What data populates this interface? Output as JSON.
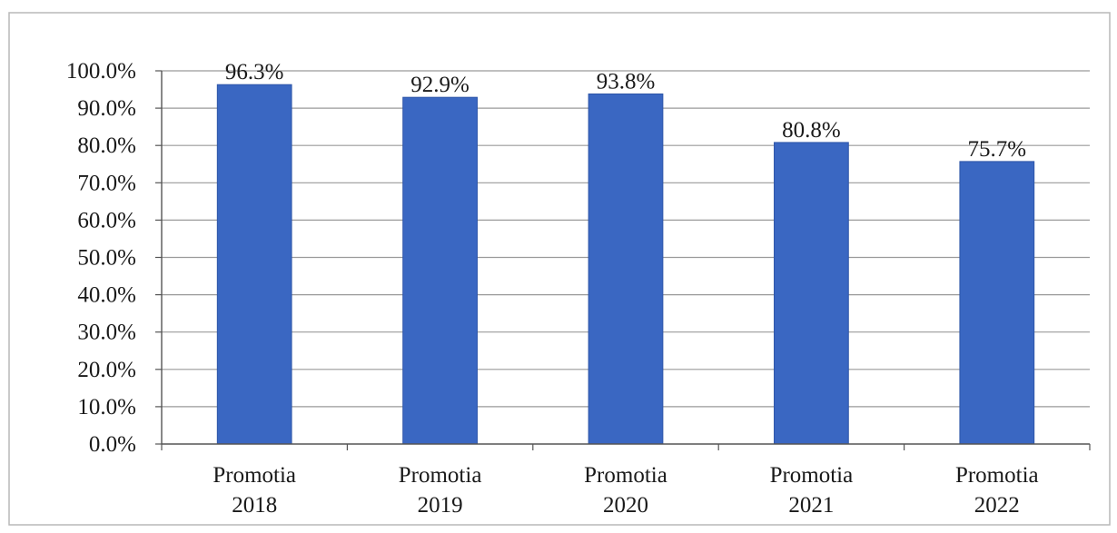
{
  "chart_data": {
    "type": "bar",
    "title": "",
    "xlabel": "",
    "ylabel": "",
    "categories": [
      [
        "Promotia",
        "2018"
      ],
      [
        "Promotia",
        "2019"
      ],
      [
        "Promotia",
        "2020"
      ],
      [
        "Promotia",
        "2021"
      ],
      [
        "Promotia",
        "2022"
      ]
    ],
    "values": [
      96.3,
      92.9,
      93.8,
      80.8,
      75.7
    ],
    "data_labels": [
      "96.3%",
      "92.9%",
      "93.8%",
      "80.8%",
      "75.7%"
    ],
    "ylim": [
      0,
      100
    ],
    "y_ticks": [
      0,
      10,
      20,
      30,
      40,
      50,
      60,
      70,
      80,
      90,
      100
    ],
    "y_tick_labels": [
      "0.0%",
      "10.0%",
      "20.0%",
      "30.0%",
      "40.0%",
      "50.0%",
      "60.0%",
      "70.0%",
      "80.0%",
      "90.0%",
      "100.0%"
    ],
    "grid": true,
    "legend": "none",
    "colors": {
      "bar": "#3A67C2",
      "bar_edge": "#2E56A8",
      "grid": "#9a9a9a",
      "axis": "#555555",
      "frame": "#b8b8b8"
    }
  }
}
